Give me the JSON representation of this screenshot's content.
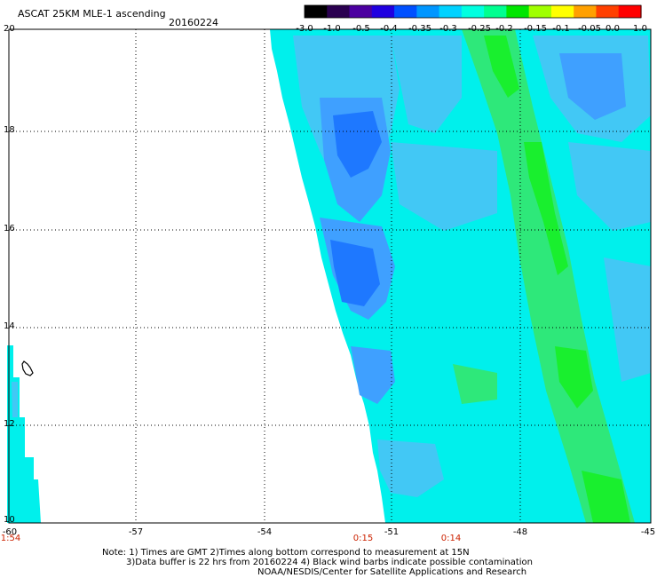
{
  "title": "ASCAT 25KM MLE-1 ascending",
  "date": "20160224",
  "colorbar": {
    "labels": [
      "-3.0",
      "-1.0",
      "-0.5",
      "-0.4",
      "-0.35",
      "-0.3",
      "-0.25",
      "-0.2",
      "-0.15",
      "-0.1",
      "-0.05",
      "0.0",
      "1.0"
    ],
    "colors": [
      "#000000",
      "#2a0050",
      "#4b00a0",
      "#2000e0",
      "#0050ff",
      "#0096ff",
      "#00d2ff",
      "#00ffe0",
      "#00ff90",
      "#00e600",
      "#a0ff00",
      "#ffff00",
      "#ffa000",
      "#ff4000",
      "#ff0000"
    ]
  },
  "axes": {
    "y_labels": [
      "20",
      "18",
      "16",
      "14",
      "12",
      "10"
    ],
    "x_labels": [
      "-60",
      "-57",
      "-54",
      "-51",
      "-48",
      "-45"
    ],
    "time_labels": [
      "1:54",
      "0:15",
      "0:14"
    ]
  },
  "map": {
    "lon_range": [
      -60,
      -45
    ],
    "lat_range": [
      10,
      20
    ],
    "swath_colors": {
      "deep": "#1e78ff",
      "mid": "#3fa0ff",
      "light": "#42c8f5",
      "base": "#00f0ec",
      "green": "#2ee87a",
      "bright": "#19ef2e"
    },
    "land_outline": "Barbados"
  },
  "notes": [
    "Note: 1) Times are GMT 2)Times along bottom correspond to measurement at 15N",
    "3)Data buffer is 22 hrs from 20160224 4) Black wind barbs indicate possible contamination",
    "NOAA/NESDIS/Center for Satellite Applications and Research"
  ]
}
